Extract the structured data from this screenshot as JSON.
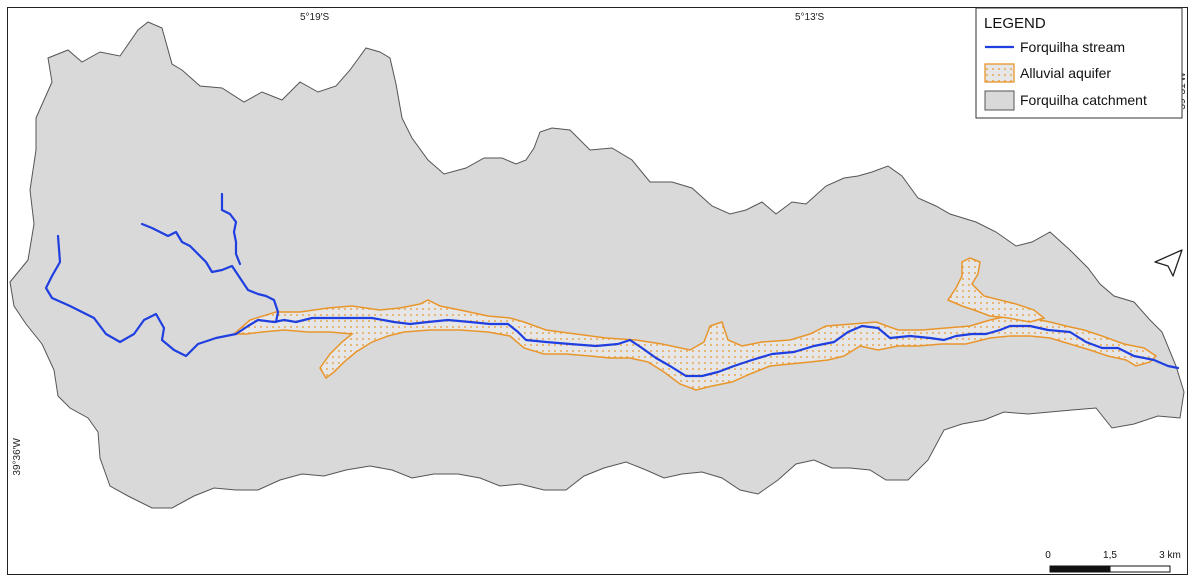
{
  "map": {
    "coordinates": {
      "top_left": "5°19′S",
      "top_right": "5°13′S",
      "right_side": "39°31′W",
      "left_side": "39°36′W"
    },
    "legend": {
      "title": "LEGEND",
      "items": [
        {
          "label": "Forquilha stream",
          "symbol": "line",
          "color": "#1f3fe0"
        },
        {
          "label": "Alluvial aquifer",
          "symbol": "dotted-polygon",
          "color": "#e8962c"
        },
        {
          "label": "Forquilha catchment",
          "symbol": "polygon",
          "color": "#d9d9d9"
        }
      ]
    },
    "scale_bar": {
      "labels": [
        "0",
        "1,5",
        "3 km"
      ]
    },
    "north_arrow": {
      "icon": "north-arrow-icon"
    },
    "colors": {
      "catchment_fill": "#d9d9d9",
      "catchment_stroke": "#555555",
      "stream": "#1f3fe0",
      "aquifer": "#e8962c"
    }
  }
}
